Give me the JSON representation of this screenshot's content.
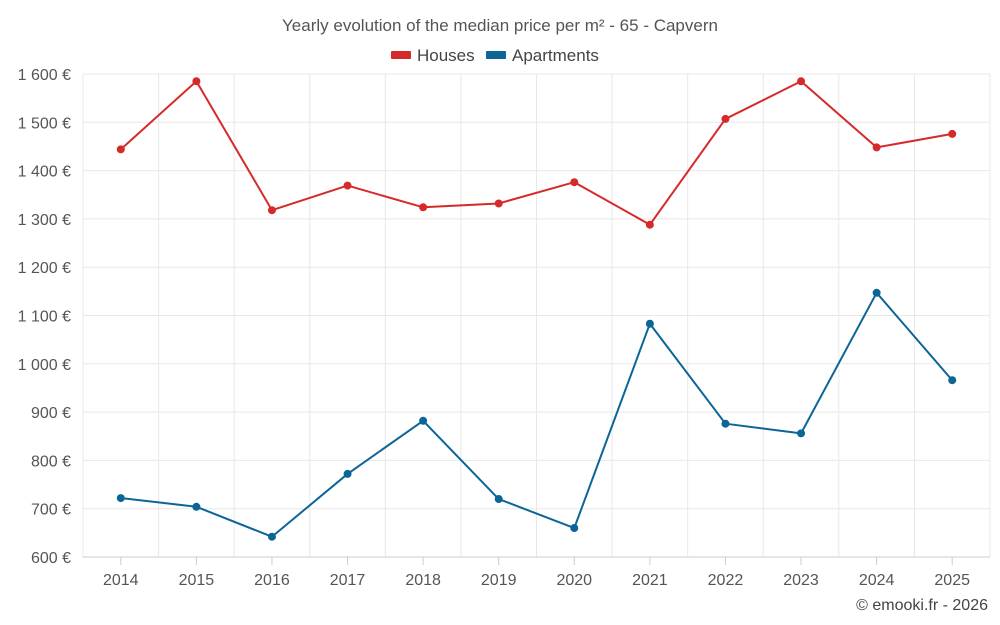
{
  "chart_data": {
    "type": "line",
    "title": "Yearly evolution of the median price per m² - 65 - Capvern",
    "categories": [
      "2014",
      "2015",
      "2016",
      "2017",
      "2018",
      "2019",
      "2020",
      "2021",
      "2022",
      "2023",
      "2024",
      "2025"
    ],
    "series": [
      {
        "name": "Houses",
        "color": "#d62a2a",
        "values": [
          1444,
          1585,
          1318,
          1369,
          1324,
          1332,
          1376,
          1288,
          1507,
          1585,
          1448,
          1476
        ]
      },
      {
        "name": "Apartments",
        "color": "#0b6596",
        "values": [
          722,
          704,
          642,
          772,
          882,
          720,
          660,
          1083,
          876,
          856,
          1147,
          966
        ]
      }
    ],
    "ylim": [
      600,
      1600
    ],
    "yticks": [
      600,
      700,
      800,
      900,
      1000,
      1100,
      1200,
      1300,
      1400,
      1500,
      1600
    ],
    "ytick_labels": [
      "600 €",
      "700 €",
      "800 €",
      "900 €",
      "1 000 €",
      "1 100 €",
      "1 200 €",
      "1 300 €",
      "1 400 €",
      "1 500 €",
      "1 600 €"
    ],
    "legend_position": "top-center",
    "grid": true
  },
  "credit": "© emooki.fr - 2026"
}
